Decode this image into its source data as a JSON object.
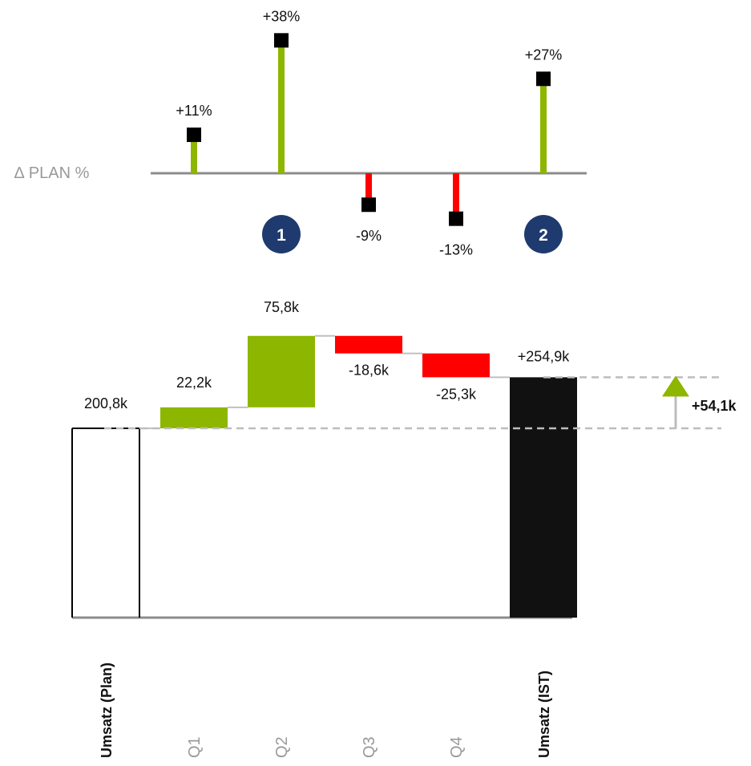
{
  "colors": {
    "positive": "#8DB600",
    "negative": "#FF0000",
    "marker": "#000000",
    "axis": "#8C8C8C",
    "total_bar": "#111111",
    "badge": "#1F3A6E",
    "connector": "#C0C0C0",
    "dashed": "#BDBDBD"
  },
  "chart_data": [
    {
      "type": "lollipop",
      "row_label": "∆ PLAN %",
      "categories": [
        "Q1",
        "Q2",
        "Q3",
        "Q4",
        "Umsatz (IST)"
      ],
      "values": [
        11,
        38,
        -9,
        -13,
        27
      ],
      "value_labels": [
        "+11%",
        "+38%",
        "-9%",
        "-13%",
        "+27%"
      ],
      "badges": [
        {
          "text": "1",
          "anchor_category": "Q2"
        },
        {
          "text": "2",
          "anchor_category": "Umsatz (IST)"
        }
      ]
    },
    {
      "type": "waterfall",
      "unit": "k",
      "categories": [
        "Umsatz (Plan)",
        "Q1",
        "Q2",
        "Q3",
        "Q4",
        "Umsatz (IST)"
      ],
      "start": {
        "category": "Umsatz (Plan)",
        "value": 200.8,
        "label": "200,8k"
      },
      "steps": [
        {
          "category": "Q1",
          "value": 22.2,
          "label": "22,2k"
        },
        {
          "category": "Q2",
          "value": 75.8,
          "label": "75,8k"
        },
        {
          "category": "Q3",
          "value": -18.6,
          "label": "-18,6k"
        },
        {
          "category": "Q4",
          "value": -25.3,
          "label": "-25,3k"
        }
      ],
      "end": {
        "category": "Umsatz (IST)",
        "value": 254.9,
        "label": "+254,9k"
      },
      "difference": {
        "value": 54.1,
        "label": "+54,1k",
        "direction": "up"
      },
      "category_style": {
        "Umsatz (Plan)": "bold",
        "Q1": "grey",
        "Q2": "grey",
        "Q3": "grey",
        "Q4": "grey",
        "Umsatz (IST)": "bold"
      }
    }
  ]
}
